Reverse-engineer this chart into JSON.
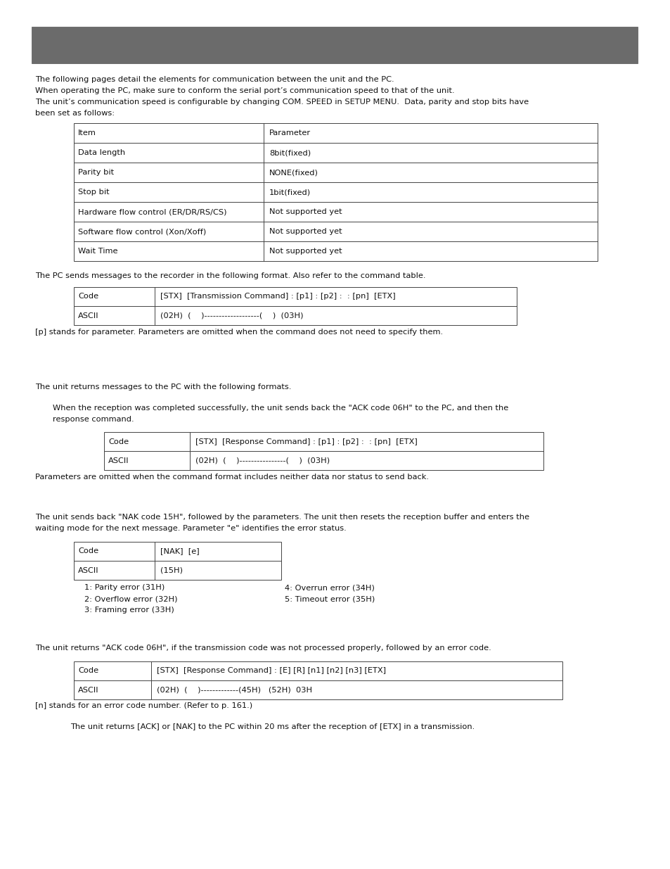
{
  "bg_color": "#ffffff",
  "header_bar_color": "#6b6b6b",
  "intro_lines": [
    "The following pages detail the elements for communication between the unit and the PC.",
    "When operating the PC, make sure to conform the serial port’s communication speed to that of the unit.",
    "The unit’s communication speed is configurable by changing COM. SPEED in SETUP MENU.  Data, parity and stop bits have",
    "been set as follows:"
  ],
  "table1_header": [
    "Item",
    "Parameter"
  ],
  "table1_rows": [
    [
      "Data length",
      "8bit(fixed)"
    ],
    [
      "Parity bit",
      "NONE(fixed)"
    ],
    [
      "Stop bit",
      "1bit(fixed)"
    ],
    [
      "Hardware flow control (ER/DR/RS/CS)",
      "Not supported yet"
    ],
    [
      "Software flow control (Xon/Xoff)",
      "Not supported yet"
    ],
    [
      "Wait Time",
      "Not supported yet"
    ]
  ],
  "transmission_intro": "The PC sends messages to the recorder in the following format. Also refer to the command table.",
  "table2_rows": [
    [
      "Code",
      "[STX]  [Transmission Command] : [p1] : [p2] :  : [pn]  [ETX]"
    ],
    [
      "ASCII",
      "(02H)  (    )-------------------(    )  (03H)"
    ]
  ],
  "param_note": "[p] stands for parameter. Parameters are omitted when the command does not need to specify them.",
  "response_intro": "The unit returns messages to the PC with the following formats.",
  "ack_line1": "When the reception was completed successfully, the unit sends back the \"ACK code 06H\" to the PC, and then the",
  "ack_line2": "response command.",
  "table3_rows": [
    [
      "Code",
      "[STX]  [Response Command] : [p1] : [p2] :  : [pn]  [ETX]"
    ],
    [
      "ASCII",
      "(02H)  (    )----------------(    )  (03H)"
    ]
  ],
  "params_note": "Parameters are omitted when the command format includes neither data nor status to send back.",
  "nak_line1": "The unit sends back \"NAK code 15H\", followed by the parameters. The unit then resets the reception buffer and enters the",
  "nak_line2": "waiting mode for the next message. Parameter \"e\" identifies the error status.",
  "table4_rows": [
    [
      "Code",
      "[NAK]  [e]"
    ],
    [
      "ASCII",
      "(15H)"
    ]
  ],
  "errors_left": [
    "1: Parity error (31H)",
    "2: Overflow error (32H)",
    "3: Framing error (33H)"
  ],
  "errors_right": [
    "4: Overrun error (34H)",
    "5: Timeout error (35H)"
  ],
  "ack_error_intro": "The unit returns \"ACK code 06H\", if the transmission code was not processed properly, followed by an error code.",
  "table5_rows": [
    [
      "Code",
      "[STX]  [Response Command] : [E] [R] [n1] [n2] [n3] [ETX]"
    ],
    [
      "ASCII",
      "(02H)  (    )-------------(45H)   (52H)  03H"
    ]
  ],
  "n_note": "[n] stands for an error code number. (Refer to p. 161.)",
  "final_note": "The unit returns [ACK] or [NAK] to the PC within 20 ms after the reception of [ETX] in a transmission."
}
